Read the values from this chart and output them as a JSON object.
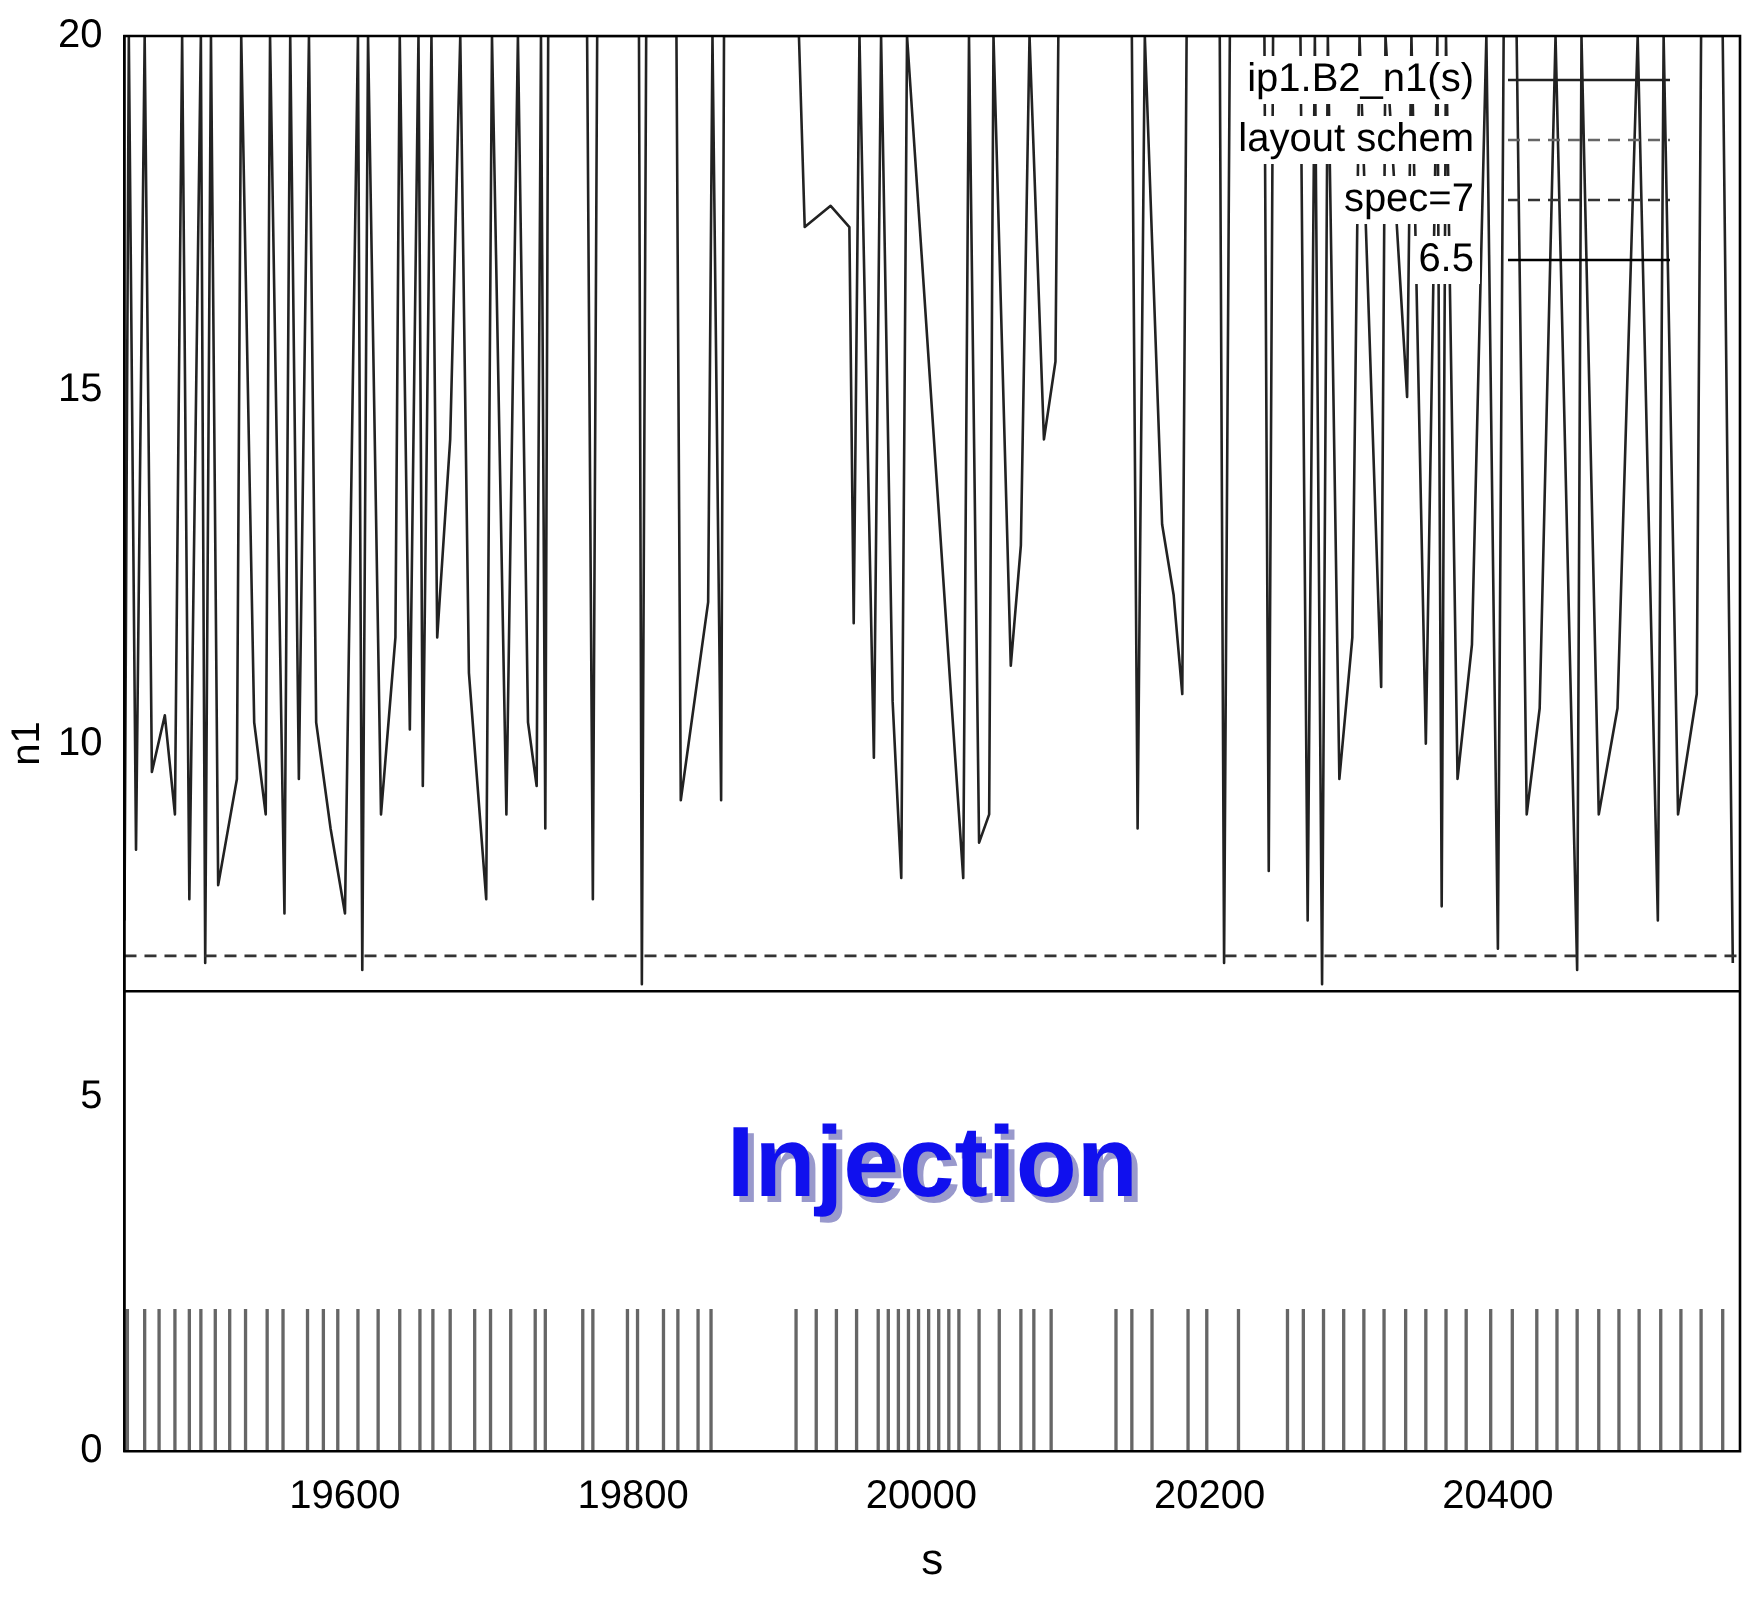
{
  "chart_data": {
    "type": "line",
    "xlabel": "s",
    "ylabel": "n1",
    "xlim": [
      19447,
      20568
    ],
    "ylim": [
      0,
      20
    ],
    "xticks": [
      19600,
      19800,
      20000,
      20200,
      20400
    ],
    "yticks": [
      0,
      5,
      10,
      15,
      20
    ],
    "grid": false,
    "legend": "top right",
    "marker": "none",
    "annotations": [
      "Injection"
    ],
    "ref_lines": [
      {
        "axis": "y",
        "value": 7,
        "label": "spec=7",
        "color": "#333333",
        "line_style": "dashed"
      },
      {
        "axis": "y",
        "value": 6.5,
        "label": "6.5",
        "color": "#000000",
        "line_style": "solid"
      }
    ],
    "series": [
      {
        "name": "ip1.B2_n1(s)",
        "color": "#222222",
        "line_style": "solid",
        "x": [
          19447,
          19450,
          19455,
          19461,
          19466,
          19475,
          19482,
          19487,
          19492,
          19500,
          19503,
          19507,
          19512,
          19525,
          19528,
          19537,
          19545,
          19548,
          19558,
          19562,
          19568,
          19575,
          19580,
          19590,
          19600,
          19609,
          19612,
          19616,
          19625,
          19635,
          19638,
          19645,
          19651,
          19654,
          19660,
          19664,
          19673,
          19680,
          19686,
          19698,
          19702,
          19712,
          19720,
          19727,
          19733,
          19736,
          19739,
          19741,
          19768,
          19772,
          19775,
          19804,
          19806,
          19809,
          19830,
          19833,
          19852,
          19855,
          19861,
          19863,
          19915,
          19919,
          19937,
          19950,
          19953,
          19957,
          19967,
          19972,
          19980,
          19986,
          19990,
          20029,
          20033,
          20040,
          20047,
          20050,
          20062,
          20069,
          20075,
          20085,
          20093,
          20095,
          20146,
          20150,
          20155,
          20167,
          20175,
          20181,
          20184,
          20207,
          20210,
          20214,
          20238,
          20241,
          20244,
          20263,
          20268,
          20273,
          20278,
          20282,
          20290,
          20299,
          20304,
          20319,
          20322,
          20337,
          20340,
          20350,
          20358,
          20361,
          20364,
          20372,
          20382,
          20392,
          20400,
          20404,
          20413,
          20420,
          20429,
          20440,
          20455,
          20458,
          20470,
          20483,
          20497,
          20511,
          20515,
          20525,
          20538,
          20541,
          20556,
          20563
        ],
        "values": [
          7.5,
          20,
          8.5,
          20,
          9.6,
          10.4,
          9.0,
          20,
          7.8,
          20,
          6.9,
          20,
          8.0,
          9.5,
          20,
          10.3,
          9.0,
          20,
          7.6,
          20,
          9.5,
          20,
          10.3,
          8.8,
          7.6,
          20,
          6.8,
          20,
          9.0,
          11.5,
          20,
          10.2,
          20,
          9.4,
          20,
          11.5,
          14.3,
          20,
          11.0,
          7.8,
          20,
          9.0,
          20,
          10.3,
          9.4,
          20,
          8.8,
          20,
          20,
          7.8,
          20,
          20,
          6.6,
          20,
          20,
          9.2,
          12.0,
          20,
          9.2,
          20,
          20,
          17.3,
          17.6,
          17.3,
          11.7,
          20,
          9.8,
          20,
          10.6,
          8.1,
          20,
          8.1,
          20,
          8.6,
          9.0,
          20,
          11.1,
          12.8,
          20,
          14.3,
          15.4,
          20,
          20,
          8.8,
          20,
          13.1,
          12.1,
          10.7,
          20,
          20,
          6.9,
          20,
          20,
          8.2,
          20,
          20,
          7.5,
          20,
          6.6,
          20,
          9.5,
          11.5,
          20,
          10.8,
          20,
          14.9,
          20,
          10.0,
          20,
          7.7,
          20,
          9.5,
          11.4,
          20,
          7.1,
          20,
          20,
          9.0,
          10.5,
          20,
          6.8,
          20,
          9.0,
          10.5,
          20,
          7.5,
          20,
          9.0,
          10.7,
          20,
          20,
          6.9
        ]
      },
      {
        "name": "layout schem",
        "type": "bar",
        "color": "#666666",
        "line_style": "dashed",
        "x": [
          19449,
          19461,
          19471,
          19482,
          19492,
          19500,
          19510,
          19520,
          19531,
          19546,
          19557,
          19574,
          19585,
          19595,
          19609,
          19623,
          19638,
          19652,
          19661,
          19673,
          19690,
          19701,
          19715,
          19732,
          19739,
          19765,
          19772,
          19796,
          19803,
          19821,
          19831,
          19845,
          19854,
          19913,
          19927,
          19941,
          19955,
          19970,
          19977,
          19984,
          19991,
          19998,
          20005,
          20012,
          20019,
          20026,
          20040,
          20054,
          20069,
          20078,
          20090,
          20135,
          20146,
          20160,
          20185,
          20198,
          20220,
          20254,
          20265,
          20279,
          20293,
          20307,
          20321,
          20336,
          20350,
          20364,
          20378,
          20395,
          20410,
          20427,
          20441,
          20455,
          20470,
          20484,
          20498,
          20513,
          20527,
          20541,
          20556
        ],
        "values": [
          2,
          2,
          2,
          2,
          2,
          2,
          2,
          2,
          2,
          2,
          2,
          2,
          2,
          2,
          2,
          2,
          2,
          2,
          2,
          2,
          2,
          2,
          2,
          2,
          2,
          2,
          2,
          2,
          2,
          2,
          2,
          2,
          2,
          2,
          2,
          2,
          2,
          2,
          2,
          2,
          2,
          2,
          2,
          2,
          2,
          2,
          2,
          2,
          2,
          2,
          2,
          2,
          2,
          2,
          2,
          2,
          2,
          2,
          2,
          2,
          2,
          2,
          2,
          2,
          2,
          2,
          2,
          2,
          2,
          2,
          2,
          2,
          2,
          2,
          2,
          2,
          2,
          2,
          2
        ]
      }
    ]
  }
}
